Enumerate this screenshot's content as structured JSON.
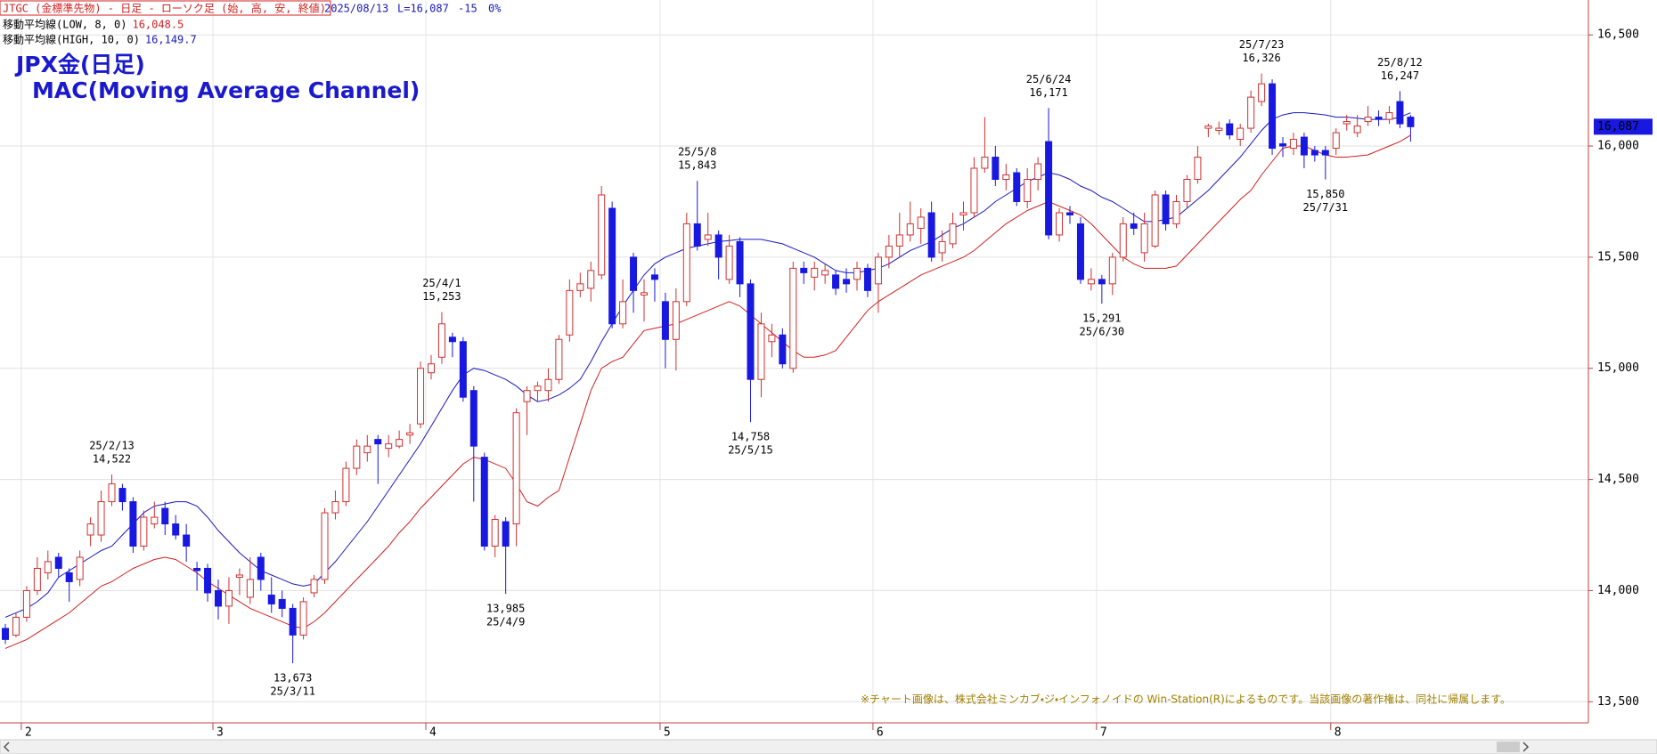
{
  "chart_data": {
    "type": "candlestick",
    "header": {
      "instrument": "JTGC (金標準先物) - 日足 - ローソク足 (始, 高, 安, 終値)",
      "date": "2025/08/13",
      "last": "L=16,087",
      "change": "-15",
      "pct": "0%"
    },
    "title": "JPX金(日足)",
    "subtitle": "MAC(Moving Average Channel)",
    "footnote": "※チャート画像は、株式会社ミンカブ・ジ・インフォノイドの Win-Station(R)によるものです。当該画像の著作権は、同社に帰属します。",
    "up_color": "#d03030",
    "down_color": "#1818e0",
    "ylim": [
      13405,
      16657
    ],
    "yticks": [
      {
        "value": 13500,
        "label": "13,500"
      },
      {
        "value": 14000,
        "label": "14,000"
      },
      {
        "value": 14500,
        "label": "14,500"
      },
      {
        "value": 15000,
        "label": "15,000"
      },
      {
        "value": 15500,
        "label": "15,500"
      },
      {
        "value": 16000,
        "label": "16,000"
      },
      {
        "value": 16500,
        "label": "16,500"
      }
    ],
    "grid": true,
    "last_price": {
      "value": 16087,
      "label": "16,087"
    },
    "categories": [
      null,
      null,
      "2",
      null,
      null,
      null,
      null,
      null,
      null,
      null,
      null,
      null,
      null,
      null,
      null,
      null,
      null,
      null,
      null,
      null,
      "3",
      null,
      null,
      null,
      null,
      null,
      null,
      null,
      null,
      null,
      null,
      null,
      null,
      null,
      null,
      null,
      null,
      null,
      null,
      null,
      "4",
      null,
      null,
      null,
      null,
      null,
      null,
      null,
      null,
      null,
      null,
      null,
      null,
      null,
      null,
      null,
      null,
      null,
      null,
      null,
      null,
      null,
      "5",
      null,
      null,
      null,
      null,
      null,
      null,
      null,
      null,
      null,
      null,
      null,
      null,
      null,
      null,
      null,
      null,
      null,
      null,
      null,
      "6",
      null,
      null,
      null,
      null,
      null,
      null,
      null,
      null,
      null,
      null,
      null,
      null,
      null,
      null,
      null,
      null,
      null,
      null,
      null,
      null,
      "7",
      null,
      null,
      null,
      null,
      null,
      null,
      null,
      null,
      null,
      null,
      null,
      null,
      null,
      null,
      null,
      null,
      null,
      null,
      null,
      null,
      null,
      "8",
      null,
      null,
      null,
      null,
      null,
      null,
      null
    ],
    "ohlc": [
      [
        13830,
        13850,
        13760,
        13780
      ],
      [
        13800,
        13900,
        13790,
        13880
      ],
      [
        13880,
        14020,
        13860,
        14000
      ],
      [
        14000,
        14150,
        13980,
        14100
      ],
      [
        14080,
        14180,
        14050,
        14130
      ],
      [
        14150,
        14170,
        14060,
        14100
      ],
      [
        14080,
        14100,
        13950,
        14040
      ],
      [
        14050,
        14180,
        14020,
        14150
      ],
      [
        14250,
        14330,
        14200,
        14300
      ],
      [
        14250,
        14450,
        14220,
        14400
      ],
      [
        14400,
        14522,
        14380,
        14480
      ],
      [
        14460,
        14480,
        14360,
        14400
      ],
      [
        14400,
        14420,
        14170,
        14200
      ],
      [
        14200,
        14360,
        14180,
        14330
      ],
      [
        14300,
        14400,
        14280,
        14330
      ],
      [
        14370,
        14400,
        14250,
        14300
      ],
      [
        14300,
        14340,
        14230,
        14250
      ],
      [
        14250,
        14300,
        14130,
        14200
      ],
      [
        14100,
        14130,
        14000,
        14090
      ],
      [
        14100,
        14120,
        13950,
        13990
      ],
      [
        14000,
        14050,
        13870,
        13930
      ],
      [
        13930,
        14060,
        13850,
        14000
      ],
      [
        14060,
        14100,
        13980,
        14070
      ],
      [
        13970,
        14150,
        13940,
        14050
      ],
      [
        14150,
        14170,
        14000,
        14050
      ],
      [
        13980,
        14060,
        13900,
        13940
      ],
      [
        13960,
        14000,
        13880,
        13920
      ],
      [
        13920,
        13940,
        13673,
        13800
      ],
      [
        13800,
        13970,
        13780,
        13950
      ],
      [
        13990,
        14070,
        13970,
        14050
      ],
      [
        14050,
        14370,
        14030,
        14350
      ],
      [
        14350,
        14450,
        14320,
        14400
      ],
      [
        14400,
        14580,
        14380,
        14550
      ],
      [
        14550,
        14680,
        14520,
        14650
      ],
      [
        14620,
        14700,
        14580,
        14650
      ],
      [
        14680,
        14700,
        14480,
        14660
      ],
      [
        14640,
        14700,
        14600,
        14660
      ],
      [
        14650,
        14720,
        14640,
        14680
      ],
      [
        14700,
        14750,
        14660,
        14710
      ],
      [
        14750,
        15030,
        14730,
        15000
      ],
      [
        14980,
        15060,
        14950,
        15020
      ],
      [
        15050,
        15253,
        15020,
        15200
      ],
      [
        15140,
        15160,
        15050,
        15120
      ],
      [
        15120,
        15140,
        14850,
        14870
      ],
      [
        14900,
        14920,
        14400,
        14650
      ],
      [
        14600,
        14620,
        14180,
        14200
      ],
      [
        14200,
        14340,
        14150,
        14320
      ],
      [
        14310,
        14330,
        13985,
        14200
      ],
      [
        14300,
        14820,
        14200,
        14800
      ],
      [
        14850,
        14920,
        14700,
        14900
      ],
      [
        14900,
        14940,
        14850,
        14920
      ],
      [
        14900,
        15000,
        14850,
        14950
      ],
      [
        14950,
        15150,
        14930,
        15130
      ],
      [
        15150,
        15400,
        15120,
        15350
      ],
      [
        15350,
        15430,
        15320,
        15380
      ],
      [
        15360,
        15480,
        15300,
        15440
      ],
      [
        15420,
        15820,
        15400,
        15780
      ],
      [
        15720,
        15750,
        15180,
        15200
      ],
      [
        15200,
        15400,
        15180,
        15300
      ],
      [
        15500,
        15520,
        15250,
        15350
      ],
      [
        15330,
        15400,
        15210,
        15340
      ],
      [
        15420,
        15450,
        15300,
        15400
      ],
      [
        15300,
        15340,
        15000,
        15130
      ],
      [
        15130,
        15360,
        14990,
        15300
      ],
      [
        15300,
        15700,
        15280,
        15650
      ],
      [
        15650,
        15843,
        15530,
        15550
      ],
      [
        15580,
        15700,
        15550,
        15600
      ],
      [
        15600,
        15620,
        15400,
        15500
      ],
      [
        15400,
        15600,
        15380,
        15550
      ],
      [
        15570,
        15590,
        15320,
        15380
      ],
      [
        15380,
        15400,
        14758,
        14950
      ],
      [
        14950,
        15250,
        14870,
        15200
      ],
      [
        15120,
        15200,
        15050,
        15150
      ],
      [
        15150,
        15180,
        15000,
        15020
      ],
      [
        15000,
        15480,
        14980,
        15450
      ],
      [
        15450,
        15480,
        15380,
        15430
      ],
      [
        15410,
        15480,
        15350,
        15450
      ],
      [
        15420,
        15470,
        15380,
        15440
      ],
      [
        15420,
        15440,
        15330,
        15360
      ],
      [
        15400,
        15450,
        15340,
        15380
      ],
      [
        15400,
        15480,
        15350,
        15450
      ],
      [
        15450,
        15470,
        15320,
        15350
      ],
      [
        15380,
        15520,
        15250,
        15500
      ],
      [
        15500,
        15600,
        15450,
        15550
      ],
      [
        15550,
        15700,
        15500,
        15600
      ],
      [
        15600,
        15750,
        15570,
        15650
      ],
      [
        15630,
        15720,
        15560,
        15680
      ],
      [
        15700,
        15750,
        15480,
        15500
      ],
      [
        15520,
        15620,
        15480,
        15570
      ],
      [
        15560,
        15700,
        15540,
        15650
      ],
      [
        15690,
        15750,
        15620,
        15700
      ],
      [
        15700,
        15950,
        15680,
        15900
      ],
      [
        15900,
        16130,
        15880,
        15950
      ],
      [
        15950,
        16000,
        15820,
        15850
      ],
      [
        15850,
        15920,
        15800,
        15870
      ],
      [
        15880,
        15900,
        15730,
        15750
      ],
      [
        15750,
        15900,
        15720,
        15850
      ],
      [
        15850,
        15950,
        15800,
        15920
      ],
      [
        16020,
        16171,
        15580,
        15600
      ],
      [
        15600,
        15720,
        15570,
        15700
      ],
      [
        15700,
        15730,
        15650,
        15690
      ],
      [
        15650,
        15680,
        15380,
        15400
      ],
      [
        15380,
        15450,
        15350,
        15400
      ],
      [
        15400,
        15420,
        15291,
        15380
      ],
      [
        15380,
        15520,
        15330,
        15500
      ],
      [
        15500,
        15680,
        15480,
        15650
      ],
      [
        15650,
        15700,
        15600,
        15630
      ],
      [
        15520,
        15700,
        15480,
        15650
      ],
      [
        15550,
        15800,
        15540,
        15780
      ],
      [
        15780,
        15800,
        15620,
        15650
      ],
      [
        15650,
        15780,
        15630,
        15750
      ],
      [
        15750,
        15870,
        15720,
        15850
      ],
      [
        15850,
        16000,
        15830,
        15950
      ],
      [
        16080,
        16100,
        16040,
        16090
      ],
      [
        16070,
        16110,
        16050,
        16080
      ],
      [
        16100,
        16120,
        16030,
        16050
      ],
      [
        16030,
        16100,
        16000,
        16080
      ],
      [
        16080,
        16250,
        16060,
        16220
      ],
      [
        16200,
        16326,
        16180,
        16280
      ],
      [
        16280,
        16300,
        15960,
        15990
      ],
      [
        16010,
        16040,
        15950,
        16000
      ],
      [
        15990,
        16060,
        15960,
        16030
      ],
      [
        16040,
        16060,
        15900,
        15960
      ],
      [
        15980,
        16000,
        15930,
        15960
      ],
      [
        15980,
        16000,
        15850,
        15960
      ],
      [
        15990,
        16080,
        15960,
        16060
      ],
      [
        16100,
        16140,
        16070,
        16110
      ],
      [
        16060,
        16140,
        16040,
        16090
      ],
      [
        16110,
        16180,
        16090,
        16130
      ],
      [
        16130,
        16160,
        16090,
        16120
      ],
      [
        16120,
        16180,
        16100,
        16150
      ],
      [
        16200,
        16247,
        16080,
        16100
      ],
      [
        16130,
        16140,
        16020,
        16087
      ]
    ],
    "series": [
      {
        "name": "移動平均線(LOW, 8, 0)",
        "color": "#d02020",
        "legend_value": {
          "value": 16048.5,
          "label": "16,048.5"
        },
        "values": [
          13740,
          13760,
          13780,
          13810,
          13840,
          13870,
          13900,
          13940,
          13980,
          14020,
          14040,
          14070,
          14100,
          14120,
          14140,
          14150,
          14140,
          14110,
          14080,
          14040,
          14010,
          13980,
          13950,
          13920,
          13900,
          13880,
          13860,
          13840,
          13830,
          13860,
          13900,
          13950,
          14000,
          14050,
          14100,
          14150,
          14200,
          14260,
          14310,
          14370,
          14420,
          14470,
          14520,
          14570,
          14600,
          14590,
          14570,
          14550,
          14480,
          14400,
          14380,
          14420,
          14450,
          14600,
          14750,
          14900,
          15000,
          15030,
          15050,
          15110,
          15170,
          15180,
          15190,
          15200,
          15220,
          15240,
          15260,
          15280,
          15300,
          15280,
          15240,
          15200,
          15160,
          15120,
          15080,
          15050,
          15050,
          15060,
          15080,
          15140,
          15200,
          15260,
          15300,
          15330,
          15360,
          15390,
          15420,
          15440,
          15460,
          15480,
          15500,
          15530,
          15570,
          15610,
          15650,
          15680,
          15710,
          15730,
          15750,
          15730,
          15710,
          15690,
          15650,
          15600,
          15550,
          15500,
          15470,
          15450,
          15450,
          15450,
          15460,
          15510,
          15560,
          15610,
          15660,
          15710,
          15760,
          15800,
          15870,
          15930,
          15990,
          16000,
          16000,
          15980,
          15960,
          15950,
          15950,
          15955,
          15960,
          15980,
          16000,
          16020,
          16048.5
        ]
      },
      {
        "name": "移動平均線(HIGH, 10, 0)",
        "color": "#1818c0",
        "legend_value": {
          "value": 16149.7,
          "label": "16,149.7"
        },
        "values": [
          13880,
          13900,
          13920,
          13950,
          13990,
          14060,
          14090,
          14120,
          14150,
          14180,
          14200,
          14250,
          14300,
          14350,
          14380,
          14390,
          14400,
          14400,
          14380,
          14330,
          14270,
          14220,
          14170,
          14130,
          14090,
          14070,
          14050,
          14030,
          14020,
          14030,
          14080,
          14130,
          14190,
          14250,
          14310,
          14380,
          14450,
          14520,
          14590,
          14660,
          14740,
          14820,
          14900,
          14970,
          15000,
          14990,
          14970,
          14950,
          14920,
          14880,
          14850,
          14860,
          14880,
          14910,
          14950,
          15030,
          15120,
          15200,
          15280,
          15350,
          15420,
          15470,
          15500,
          15520,
          15540,
          15550,
          15560,
          15570,
          15575,
          15580,
          15580,
          15580,
          15570,
          15560,
          15540,
          15520,
          15500,
          15470,
          15440,
          15430,
          15430,
          15440,
          15450,
          15470,
          15500,
          15530,
          15550,
          15570,
          15600,
          15630,
          15650,
          15680,
          15710,
          15750,
          15780,
          15810,
          15840,
          15860,
          15880,
          15870,
          15850,
          15820,
          15800,
          15770,
          15750,
          15720,
          15690,
          15660,
          15660,
          15670,
          15680,
          15720,
          15760,
          15800,
          15850,
          15900,
          15950,
          16010,
          16070,
          16120,
          16140,
          16150,
          16150,
          16145,
          16140,
          16130,
          16130,
          16125,
          16120,
          16120,
          16120,
          16130,
          16149.7
        ]
      }
    ],
    "annotations": [
      {
        "date": "25/2/13",
        "price": {
          "value": 14522,
          "label": "14,522"
        }
      },
      {
        "date": "25/3/11",
        "price": {
          "value": 13673,
          "label": "13,673"
        }
      },
      {
        "date": "25/4/1",
        "price": {
          "value": 15253,
          "label": "15,253"
        }
      },
      {
        "date": "25/4/9",
        "price": {
          "value": 13985,
          "label": "13,985"
        }
      },
      {
        "date": "25/5/8",
        "price": {
          "value": 15843,
          "label": "15,843"
        }
      },
      {
        "date": "25/5/15",
        "price": {
          "value": 14758,
          "label": "14,758"
        }
      },
      {
        "date": "25/6/24",
        "price": {
          "value": 16171,
          "label": "16,171"
        }
      },
      {
        "date": "25/6/30",
        "price": {
          "value": 15291,
          "label": "15,291"
        }
      },
      {
        "date": "25/7/23",
        "price": {
          "value": 16326,
          "label": "16,326"
        }
      },
      {
        "date": "25/7/31",
        "price": {
          "value": 15850,
          "label": "15,850"
        }
      },
      {
        "date": "25/8/12",
        "price": {
          "value": 16247,
          "label": "16,247"
        }
      }
    ]
  }
}
